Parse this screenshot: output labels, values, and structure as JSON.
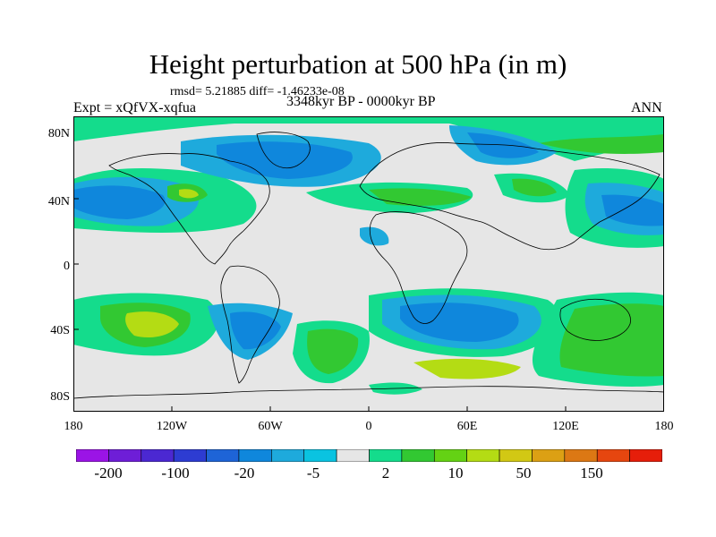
{
  "title": "Height perturbation at 500 hPa (in m)",
  "stats": "rmsd= 5.21885 diff= -1.46233e-08",
  "left_label": "Expt = xQfVX-xqfua",
  "center_label": "3348kyr BP - 0000kyr BP",
  "right_label": "ANN",
  "lat_ticks": [
    "80N",
    "40N",
    "0",
    "40S",
    "80S"
  ],
  "lon_ticks": [
    "180",
    "120W",
    "60W",
    "0",
    "60E",
    "120E",
    "180"
  ],
  "colorbar": {
    "colors": [
      "#9b14e6",
      "#6e1ed7",
      "#4b28d2",
      "#2d3cd2",
      "#1e64d7",
      "#0f87dc",
      "#1eaadc",
      "#0ac3e1",
      "#e6e6e6",
      "#14dc8c",
      "#32c832",
      "#64d214",
      "#b4dc14",
      "#d2c814",
      "#dca014",
      "#dc7814",
      "#e6460f",
      "#e61e0a"
    ],
    "labels": [
      "-200",
      "-100",
      "-20",
      "-5",
      "2",
      "10",
      "50",
      "150"
    ]
  },
  "palette": {
    "neutral": "#e6e6e6",
    "light_blue": "#1eaadc",
    "blue": "#0f87dc",
    "dark_blue": "#1e64d7",
    "teal_green": "#14dc8c",
    "green": "#32c832",
    "yellow_green": "#b4dc14"
  }
}
